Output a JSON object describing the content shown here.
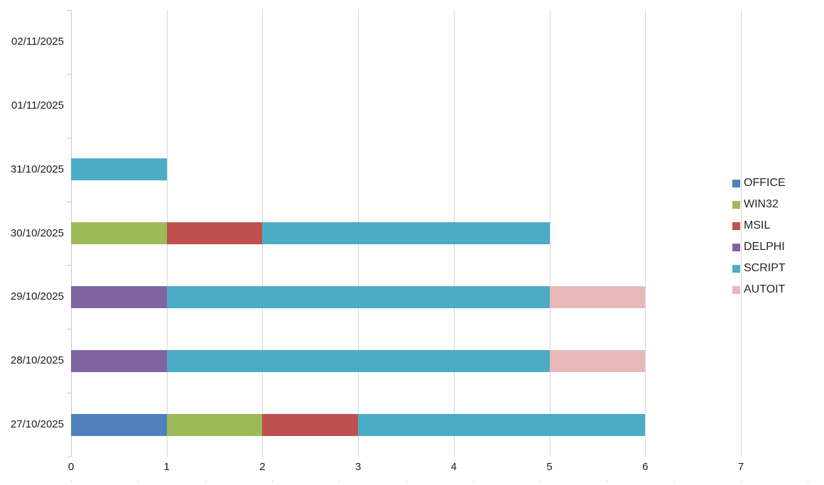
{
  "chart_data": {
    "type": "bar",
    "orientation": "horizontal",
    "stacked": true,
    "title": "",
    "xlabel": "",
    "ylabel": "",
    "categories": [
      "02/11/2025",
      "01/11/2025",
      "31/10/2025",
      "30/10/2025",
      "29/10/2025",
      "28/10/2025",
      "27/10/2025"
    ],
    "series": [
      {
        "name": "OFFICE",
        "color": "#4F81BD",
        "values": [
          0,
          0,
          0,
          0,
          0,
          0,
          1
        ]
      },
      {
        "name": "WIN32",
        "color": "#9BBB59",
        "values": [
          0,
          0,
          0,
          1,
          0,
          0,
          1
        ]
      },
      {
        "name": "MSIL",
        "color": "#C0504D",
        "values": [
          0,
          0,
          0,
          1,
          0,
          0,
          1
        ]
      },
      {
        "name": "DELPHI",
        "color": "#8064A2",
        "values": [
          0,
          0,
          0,
          0,
          1,
          1,
          0
        ]
      },
      {
        "name": "SCRIPT",
        "color": "#4BACC6",
        "values": [
          0,
          0,
          1,
          3,
          4,
          4,
          3
        ]
      },
      {
        "name": "AUTOIT",
        "color": "#E6B9B8",
        "values": [
          0,
          0,
          0,
          0,
          1,
          1,
          0
        ]
      }
    ],
    "x_ticks": [
      "0",
      "1",
      "2",
      "3",
      "4",
      "5",
      "6",
      "7"
    ],
    "xlim": [
      0,
      7
    ],
    "grid": "vertical-only",
    "legend_position": "right",
    "colors": {
      "gridline": "#d6d6d6",
      "axis_line": "#c9c9c9",
      "label_text": "#1a1a1a",
      "legend_text": "#262626"
    }
  }
}
